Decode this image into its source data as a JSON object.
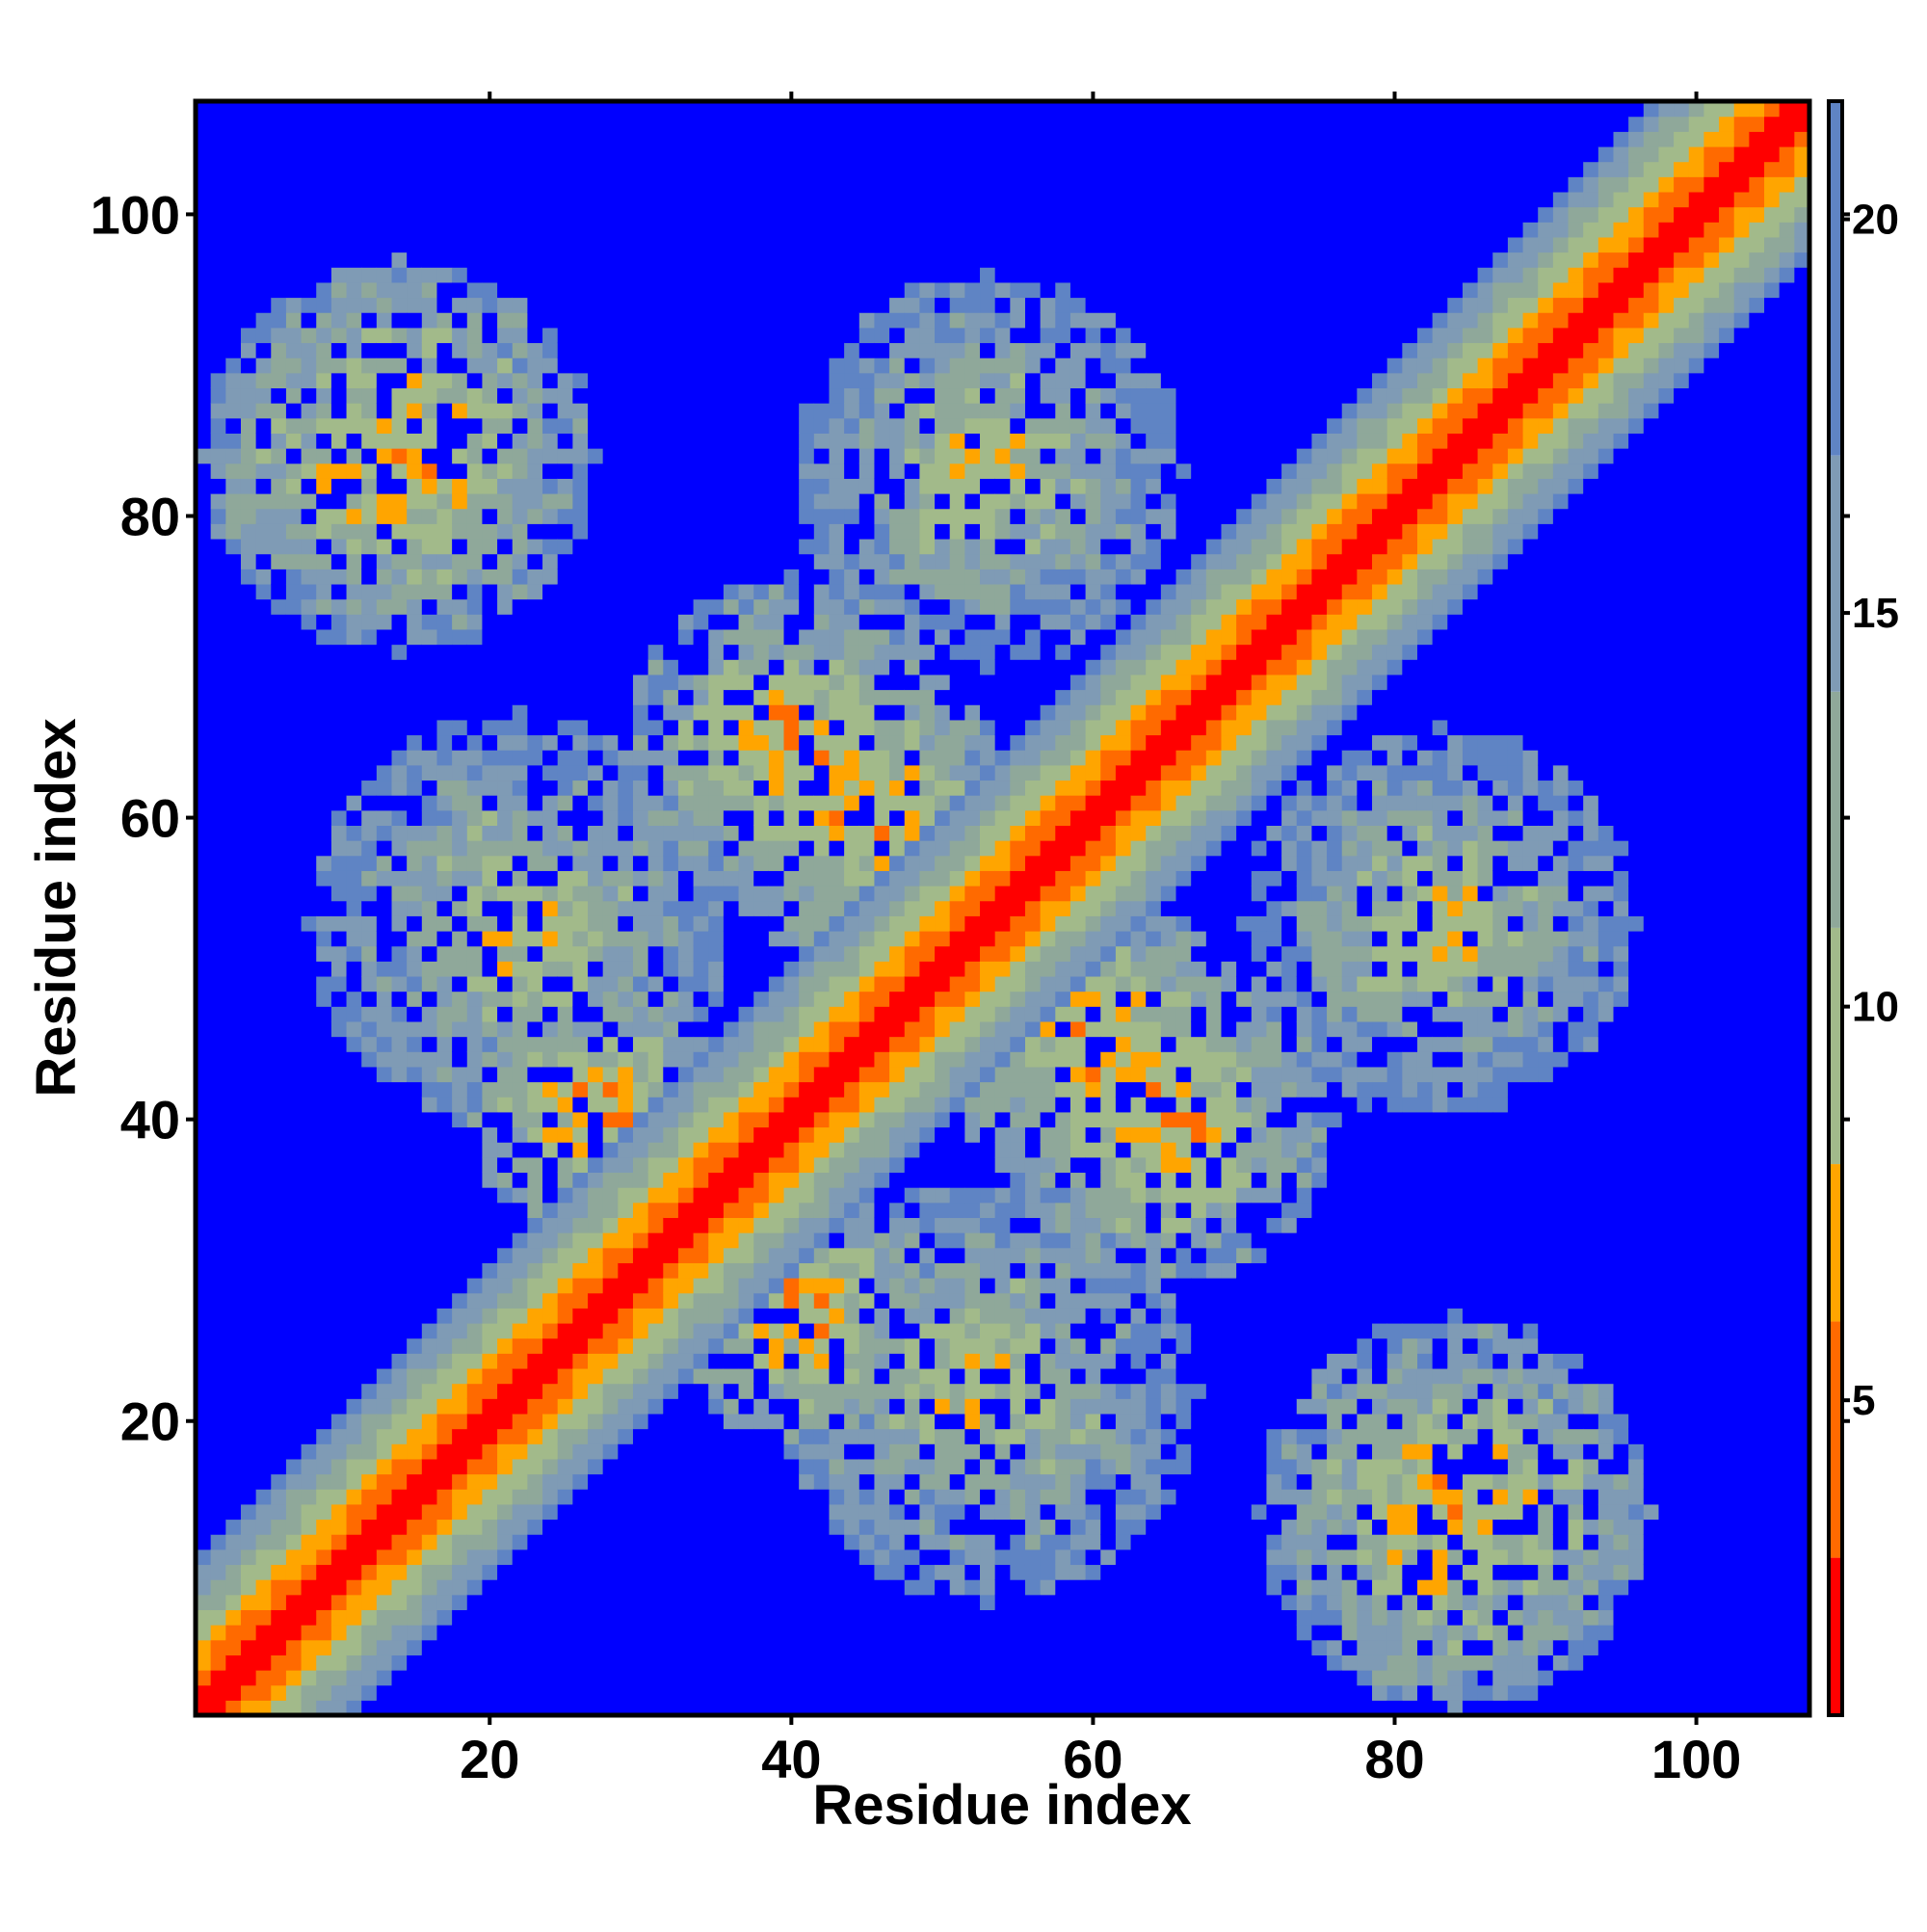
{
  "chart_data": {
    "type": "heatmap",
    "title": "",
    "xlabel": "Residue index",
    "ylabel": "Residue index",
    "n_residues": 107,
    "xlim": [
      1,
      107
    ],
    "ylim": [
      1,
      107
    ],
    "x_ticks": [
      "20",
      "40",
      "60",
      "80",
      "100"
    ],
    "x_tick_values": [
      20,
      40,
      60,
      80,
      100
    ],
    "y_ticks": [
      "20",
      "40",
      "60",
      "80",
      "100"
    ],
    "y_tick_values": [
      20,
      40,
      60,
      80,
      100
    ],
    "colorbar": {
      "range": [
        1,
        21.5
      ],
      "ticks": [
        "5",
        "10",
        "15",
        "20"
      ],
      "tick_values": [
        5,
        10,
        15,
        20
      ],
      "under_color": "#0000ff"
    },
    "colormap": [
      {
        "max": 3,
        "color": "#ff0000"
      },
      {
        "max": 6,
        "color": "#ff6a00"
      },
      {
        "max": 8,
        "color": "#ffa500"
      },
      {
        "max": 11,
        "color": "#a2ba8a"
      },
      {
        "max": 14,
        "color": "#8fa89a"
      },
      {
        "max": 17,
        "color": "#7f9bb5"
      },
      {
        "max": 21.5,
        "color": "#5f84c4"
      }
    ],
    "background_color": "#0000ff",
    "structure": {
      "diagonal_band_halfwidth": 10,
      "contact_regions": [
        {
          "x_center": 14,
          "y_center": 84,
          "radius": 13,
          "min_distance": 6
        },
        {
          "x_center": 84,
          "y_center": 14,
          "radius": 13,
          "min_distance": 6
        },
        {
          "x_center": 53,
          "y_center": 83,
          "radius": 13,
          "min_distance": 8
        },
        {
          "x_center": 83,
          "y_center": 53,
          "radius": 13,
          "min_distance": 8
        },
        {
          "x_center": 22,
          "y_center": 53,
          "radius": 14,
          "min_distance": 8
        },
        {
          "x_center": 53,
          "y_center": 22,
          "radius": 14,
          "min_distance": 8
        },
        {
          "x_center": 40,
          "y_center": 65,
          "radius": 11,
          "min_distance": 6
        },
        {
          "x_center": 65,
          "y_center": 40,
          "radius": 11,
          "min_distance": 6
        },
        {
          "x_center": 60,
          "y_center": 45,
          "radius": 10,
          "min_distance": 6
        },
        {
          "x_center": 45,
          "y_center": 60,
          "radius": 10,
          "min_distance": 6
        },
        {
          "x_center": 28,
          "y_center": 40,
          "radius": 9,
          "min_distance": 5
        },
        {
          "x_center": 40,
          "y_center": 28,
          "radius": 9,
          "min_distance": 5
        }
      ]
    }
  }
}
